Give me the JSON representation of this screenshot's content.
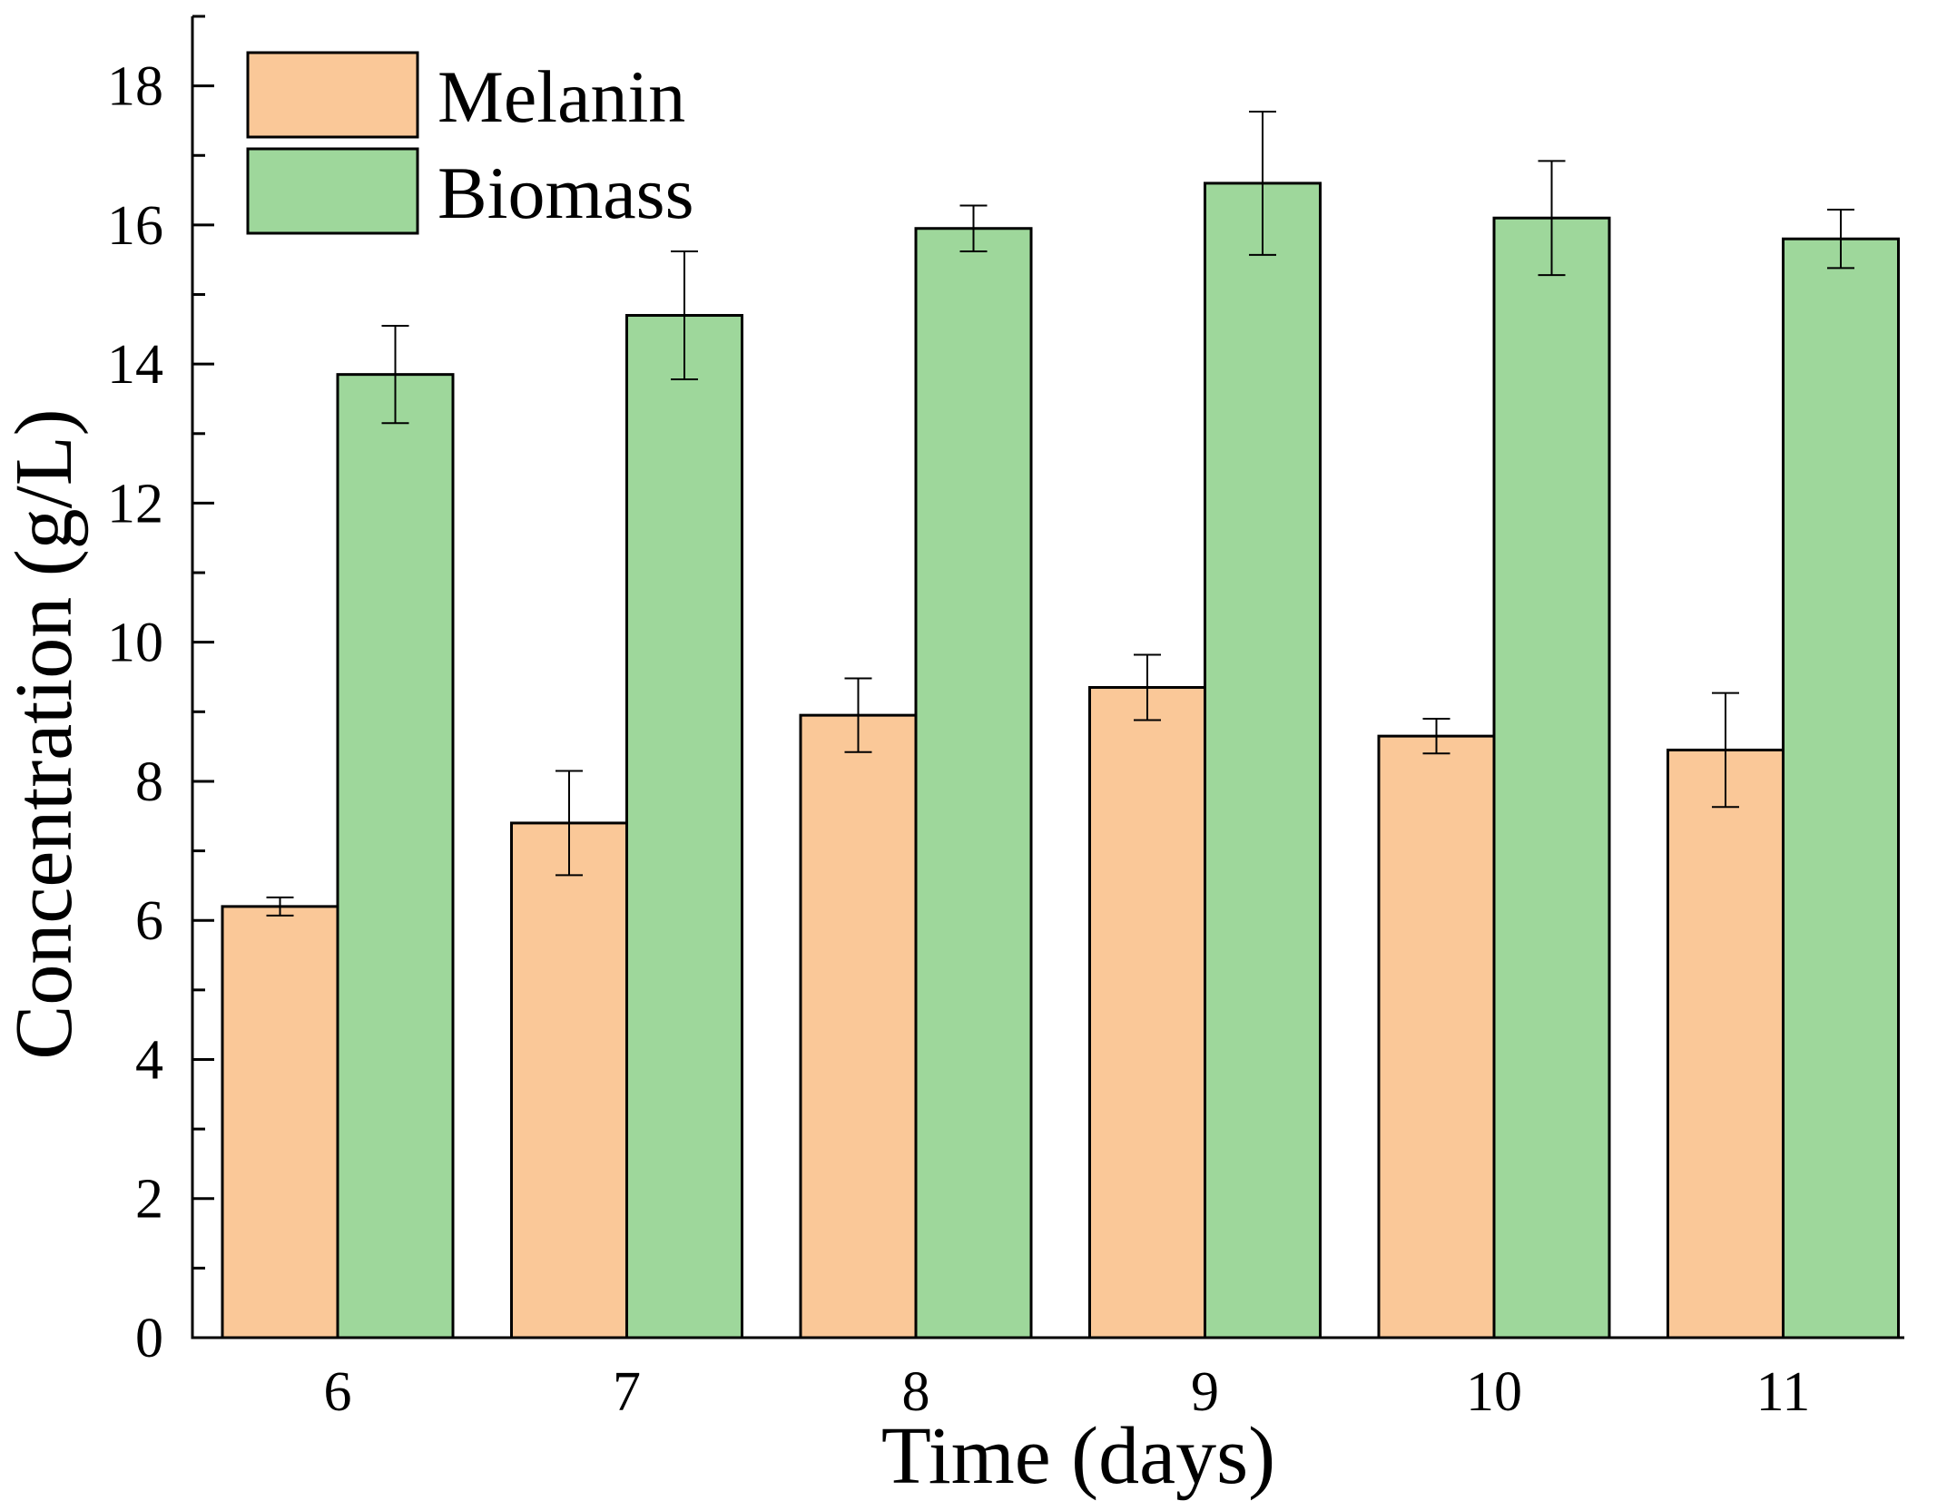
{
  "chart_data": {
    "type": "bar",
    "xlabel": "Time (days)",
    "ylabel": "Concentration (g/L)",
    "ylim": [
      0,
      19
    ],
    "yticks": [
      0,
      2,
      4,
      6,
      8,
      10,
      12,
      14,
      16,
      18
    ],
    "categories": [
      "6",
      "7",
      "8",
      "9",
      "10",
      "11"
    ],
    "legend_position": "top-left",
    "series": [
      {
        "name": "Melanin",
        "color": "#fac898",
        "values": [
          6.2,
          7.4,
          8.95,
          9.35,
          8.65,
          8.45
        ],
        "errors": [
          0.13,
          0.75,
          0.53,
          0.47,
          0.25,
          0.82
        ]
      },
      {
        "name": "Biomass",
        "color": "#9ed79b",
        "values": [
          13.85,
          14.7,
          15.95,
          16.6,
          16.1,
          15.8
        ],
        "errors": [
          0.7,
          0.92,
          0.33,
          1.03,
          0.82,
          0.42
        ]
      }
    ]
  }
}
